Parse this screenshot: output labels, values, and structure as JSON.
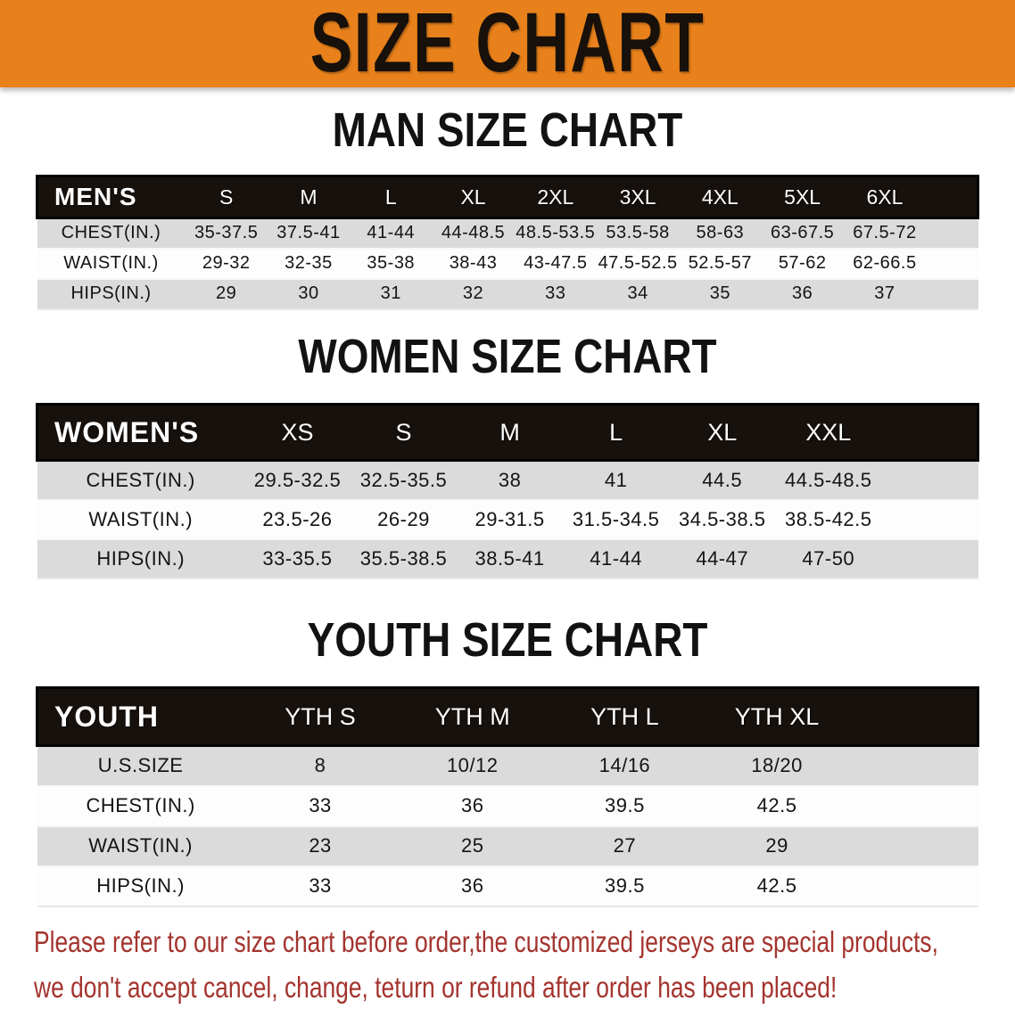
{
  "banner": {
    "title": "SIZE CHART"
  },
  "colors": {
    "banner_bg": "#E8811B",
    "banner_text": "#18100A",
    "table_header_bg": "#17110D",
    "table_header_text": "#FFFFFF",
    "row_shaded": "#DBDBDB",
    "row_plain": "#FDFDFD",
    "disclaimer_text": "#A4342E"
  },
  "sections": [
    {
      "title": "MAN SIZE CHART",
      "label": "MEN'S",
      "columns": [
        "S",
        "M",
        "L",
        "XL",
        "2XL",
        "3XL",
        "4XL",
        "5XL",
        "6XL"
      ],
      "rows": [
        {
          "label": "CHEST(IN.)",
          "values": [
            "35-37.5",
            "37.5-41",
            "41-44",
            "44-48.5",
            "48.5-53.5",
            "53.5-58",
            "58-63",
            "63-67.5",
            "67.5-72"
          ]
        },
        {
          "label": "WAIST(IN.)",
          "values": [
            "29-32",
            "32-35",
            "35-38",
            "38-43",
            "43-47.5",
            "47.5-52.5",
            "52.5-57",
            "57-62",
            "62-66.5"
          ]
        },
        {
          "label": "HIPS(IN.)",
          "values": [
            "29",
            "30",
            "31",
            "32",
            "33",
            "34",
            "35",
            "36",
            "37"
          ]
        }
      ]
    },
    {
      "title": "WOMEN SIZE CHART",
      "label": "WOMEN'S",
      "columns": [
        "XS",
        "S",
        "M",
        "L",
        "XL",
        "XXL"
      ],
      "rows": [
        {
          "label": "CHEST(IN.)",
          "values": [
            "29.5-32.5",
            "32.5-35.5",
            "38",
            "41",
            "44.5",
            "44.5-48.5"
          ]
        },
        {
          "label": "WAIST(IN.)",
          "values": [
            "23.5-26",
            "26-29",
            "29-31.5",
            "31.5-34.5",
            "34.5-38.5",
            "38.5-42.5"
          ]
        },
        {
          "label": "HIPS(IN.)",
          "values": [
            "33-35.5",
            "35.5-38.5",
            "38.5-41",
            "41-44",
            "44-47",
            "47-50"
          ]
        }
      ]
    },
    {
      "title": "YOUTH SIZE CHART",
      "label": "YOUTH",
      "columns": [
        "YTH S",
        "YTH M",
        "YTH L",
        "YTH XL"
      ],
      "rows": [
        {
          "label": "U.S.SIZE",
          "values": [
            "8",
            "10/12",
            "14/16",
            "18/20"
          ]
        },
        {
          "label": "CHEST(IN.)",
          "values": [
            "33",
            "36",
            "39.5",
            "42.5"
          ]
        },
        {
          "label": "WAIST(IN.)",
          "values": [
            "23",
            "25",
            "27",
            "29"
          ]
        },
        {
          "label": "HIPS(IN.)",
          "values": [
            "33",
            "36",
            "39.5",
            "42.5"
          ]
        }
      ]
    }
  ],
  "disclaimer": {
    "lines": [
      "Please refer to our size chart before order,the customized jerseys are special products,",
      "we don't accept cancel, change, teturn or refund after order has been placed!"
    ]
  }
}
